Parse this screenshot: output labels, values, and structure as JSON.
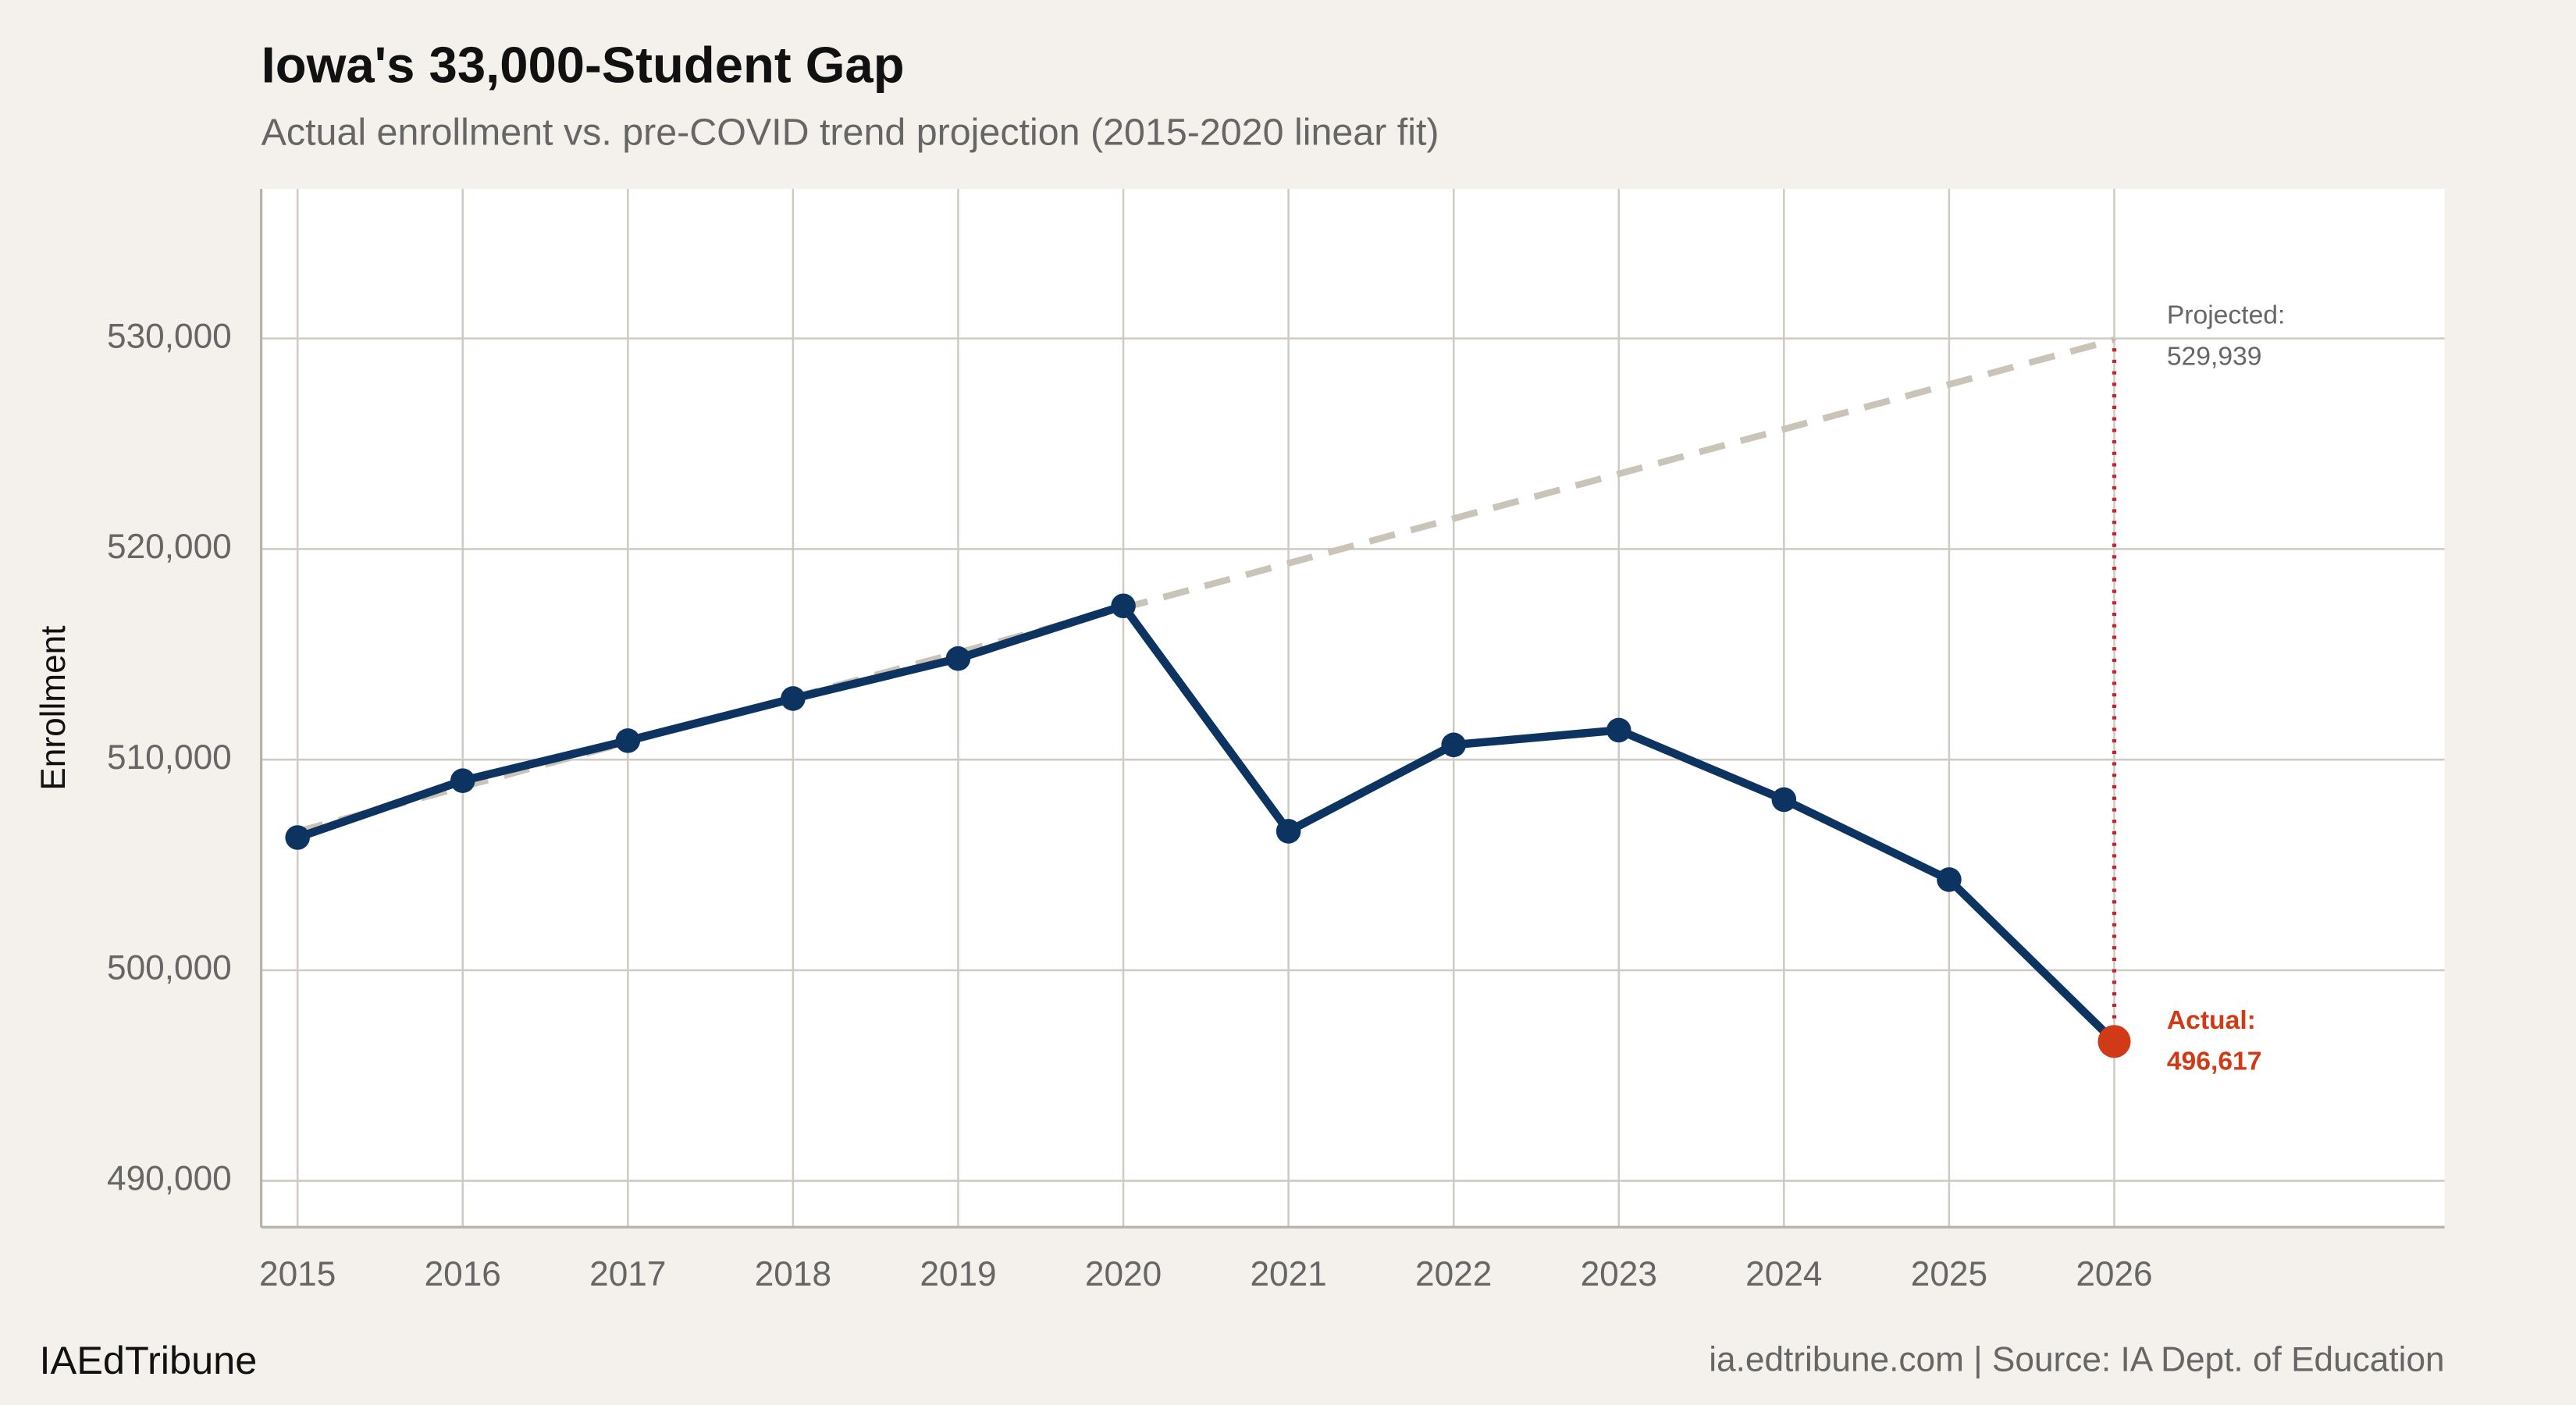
{
  "chart_data": {
    "type": "line",
    "title": "Iowa's 33,000-Student Gap",
    "subtitle": "Actual enrollment vs. pre-COVID trend projection (2015-2020 linear fit)",
    "y_label": "Enrollment",
    "xlim": [
      2014.78,
      2028.0
    ],
    "ylim": [
      487800,
      537100
    ],
    "xticks": [
      2015,
      2016,
      2017,
      2018,
      2019,
      2020,
      2021,
      2022,
      2023,
      2024,
      2025,
      2026
    ],
    "yticks": [
      {
        "value": 490000,
        "label": "490,000"
      },
      {
        "value": 500000,
        "label": "500,000"
      },
      {
        "value": 510000,
        "label": "510,000"
      },
      {
        "value": 520000,
        "label": "520,000"
      },
      {
        "value": 530000,
        "label": "530,000"
      }
    ],
    "grid": true,
    "series": [
      {
        "color": "#c9c3b8",
        "style": "dashed",
        "x": [
          2015,
          2026
        ],
        "values": [
          506586,
          529939
        ]
      },
      {
        "color": "#0d3461",
        "style": "solid",
        "x": [
          2015,
          2016,
          2017,
          2018,
          2019,
          2020,
          2021,
          2022,
          2023,
          2024,
          2025,
          2026
        ],
        "values": [
          506300,
          509000,
          510900,
          512900,
          514800,
          517300,
          506600,
          510700,
          511400,
          508100,
          504300,
          496617
        ]
      }
    ],
    "annotations": [
      {
        "x": 2026,
        "label": "Projected:",
        "value": 529939,
        "value_label": "529,939",
        "color": "#666666"
      },
      {
        "x": 2026,
        "label": "Actual:",
        "value": 496617,
        "value_label": "496,617",
        "color": "#d03a16"
      }
    ],
    "gap_color": "#c0272d",
    "footer": {
      "brand": "IAEdTribune",
      "source": "ia.edtribune.com | Source: IA Dept. of Education"
    }
  }
}
